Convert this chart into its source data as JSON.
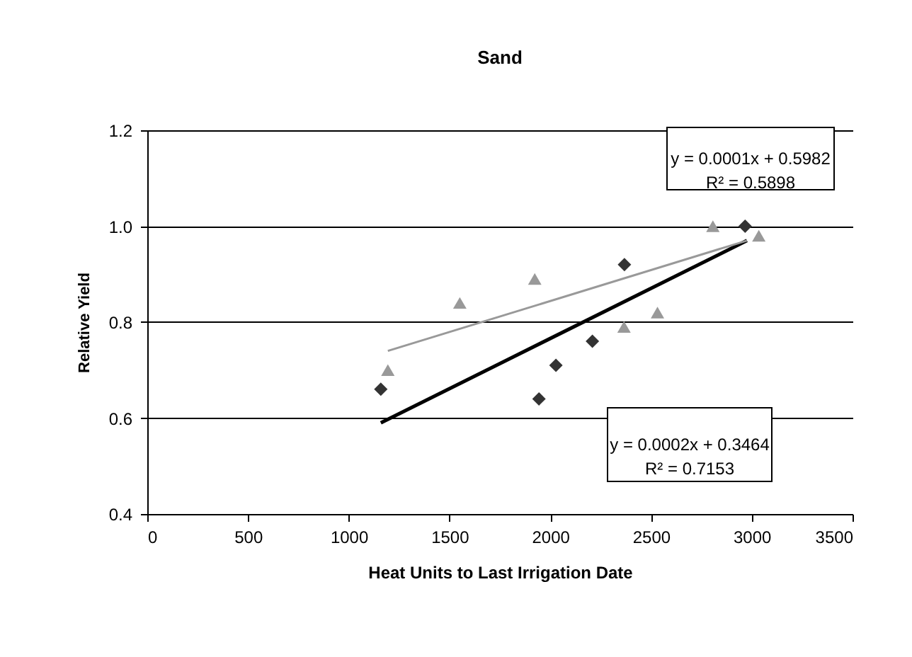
{
  "chart_data": {
    "type": "scatter",
    "title": "Sand",
    "xlabel": "Heat Units to Last Irrigation Date",
    "ylabel": "Relative Yield",
    "xlim": [
      0,
      3500
    ],
    "xticks": [
      0,
      500,
      1000,
      1500,
      2000,
      2500,
      3000,
      3500
    ],
    "ylim": [
      0.4,
      1.2
    ],
    "yticks": [
      {
        "value": 0.4,
        "label": "0.4"
      },
      {
        "value": 0.6,
        "label": "0.6"
      },
      {
        "value": 0.8,
        "label": "0.8"
      },
      {
        "value": 1.0,
        "label": "1.0"
      },
      {
        "value": 1.2,
        "label": "1.2"
      }
    ],
    "grid": "y",
    "series": [
      {
        "marker": "diamond",
        "color": "#333333",
        "x": [
          1159,
          1944,
          2028,
          2209,
          2368,
          2967
        ],
        "values": [
          0.66,
          0.64,
          0.71,
          0.76,
          0.92,
          1.0
        ]
      },
      {
        "marker": "triangle",
        "color": "#999999",
        "x": [
          1194,
          1551,
          1923,
          2366,
          2532,
          2807,
          3035
        ],
        "values": [
          0.7,
          0.84,
          0.89,
          0.79,
          0.82,
          1.0,
          0.98
        ]
      },
      {
        "type": "line",
        "color": "#000000",
        "x": [
          1159,
          2976
        ],
        "values": [
          0.59,
          0.97
        ]
      },
      {
        "type": "line",
        "color": "#999999",
        "x": [
          1194,
          2976
        ],
        "values": [
          0.74,
          0.97
        ]
      }
    ],
    "annotations": [
      "y = 0.0001x + 0.5982\nR² = 0.5898",
      "y = 0.0002x + 0.3464\nR² = 0.7153"
    ]
  }
}
